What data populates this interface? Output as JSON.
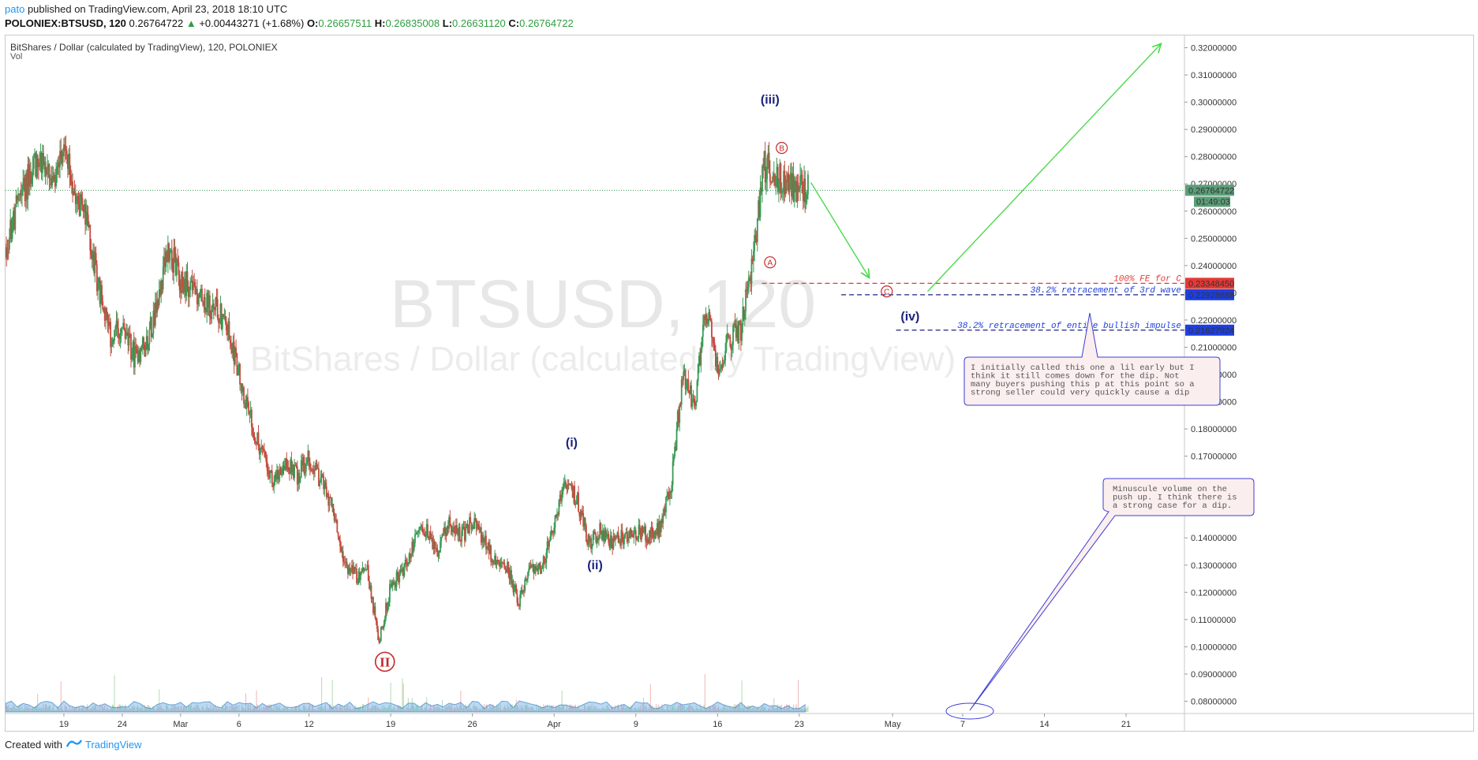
{
  "header": {
    "author": "pato",
    "published_text": "published on TradingView.com, April 23, 2018 18:10 UTC",
    "symbol": "POLONIEX:BTSUSD, 120",
    "last": "0.26764722",
    "change": "+0.00443271 (+1.68%)",
    "o_label": "O:",
    "o": "0.26657511",
    "h_label": "H:",
    "h": "0.26835008",
    "l_label": "L:",
    "l": "0.26631120",
    "c_label": "C:",
    "c": "0.26764722"
  },
  "footer": {
    "created_with": "Created with",
    "brand": "TradingView"
  },
  "chart_data": {
    "type": "candlestick",
    "title": "BitShares / Dollar (calculated by TradingView), 120, POLONIEX",
    "subtitle": "Vol",
    "watermark_symbol": "BTSUSD, 120",
    "watermark_name": "BitShares / Dollar (calculated by TradingView)",
    "x_tick_labels": [
      "19",
      "24",
      "Mar",
      "6",
      "12",
      "19",
      "26",
      "Apr",
      "9",
      "16",
      "23",
      "May",
      "7",
      "14",
      "21"
    ],
    "y_tick_labels": [
      "0.32000000",
      "0.31000000",
      "0.30000000",
      "0.29000000",
      "0.28000000",
      "0.27000000",
      "0.26000000",
      "0.25000000",
      "0.24000000",
      "0.23000000",
      "0.22000000",
      "0.21000000",
      "0.20000000",
      "0.19000000",
      "0.18000000",
      "0.17000000",
      "0.16000000",
      "0.15000000",
      "0.14000000",
      "0.13000000",
      "0.12000000",
      "0.11000000",
      "0.10000000",
      "0.09000000",
      "0.08000000"
    ],
    "ylim": [
      0.0755,
      0.3245
    ],
    "x_range_days": [
      "2018-02-14",
      "2018-05-26"
    ],
    "price_path": [
      [
        "2018-02-14",
        0.245
      ],
      [
        "2018-02-15",
        0.262
      ],
      [
        "2018-02-16",
        0.272
      ],
      [
        "2018-02-17",
        0.281
      ],
      [
        "2018-02-18",
        0.268
      ],
      [
        "2018-02-19",
        0.28
      ],
      [
        "2018-02-20",
        0.268
      ],
      [
        "2018-02-21",
        0.255
      ],
      [
        "2018-02-22",
        0.232
      ],
      [
        "2018-02-23",
        0.213
      ],
      [
        "2018-02-24",
        0.217
      ],
      [
        "2018-02-25",
        0.207
      ],
      [
        "2018-02-26",
        0.211
      ],
      [
        "2018-02-27",
        0.226
      ],
      [
        "2018-02-28",
        0.247
      ],
      [
        "2018-03-01",
        0.233
      ],
      [
        "2018-03-02",
        0.234
      ],
      [
        "2018-03-03",
        0.226
      ],
      [
        "2018-03-04",
        0.224
      ],
      [
        "2018-03-05",
        0.218
      ],
      [
        "2018-03-06",
        0.201
      ],
      [
        "2018-03-07",
        0.183
      ],
      [
        "2018-03-08",
        0.171
      ],
      [
        "2018-03-09",
        0.159
      ],
      [
        "2018-03-10",
        0.168
      ],
      [
        "2018-03-11",
        0.163
      ],
      [
        "2018-03-12",
        0.169
      ],
      [
        "2018-03-13",
        0.161
      ],
      [
        "2018-03-14",
        0.152
      ],
      [
        "2018-03-15",
        0.131
      ],
      [
        "2018-03-16",
        0.126
      ],
      [
        "2018-03-17",
        0.128
      ],
      [
        "2018-03-18",
        0.102
      ],
      [
        "2018-03-19",
        0.122
      ],
      [
        "2018-03-20",
        0.128
      ],
      [
        "2018-03-21",
        0.138
      ],
      [
        "2018-03-22",
        0.144
      ],
      [
        "2018-03-23",
        0.134
      ],
      [
        "2018-03-24",
        0.146
      ],
      [
        "2018-03-25",
        0.14
      ],
      [
        "2018-03-26",
        0.146
      ],
      [
        "2018-03-27",
        0.139
      ],
      [
        "2018-03-28",
        0.13
      ],
      [
        "2018-03-29",
        0.129
      ],
      [
        "2018-03-30",
        0.116
      ],
      [
        "2018-03-31",
        0.13
      ],
      [
        "2018-04-01",
        0.129
      ],
      [
        "2018-04-02",
        0.146
      ],
      [
        "2018-04-03",
        0.16
      ],
      [
        "2018-04-04",
        0.154
      ],
      [
        "2018-04-05",
        0.137
      ],
      [
        "2018-04-06",
        0.143
      ],
      [
        "2018-04-07",
        0.138
      ],
      [
        "2018-04-08",
        0.141
      ],
      [
        "2018-04-09",
        0.142
      ],
      [
        "2018-04-10",
        0.141
      ],
      [
        "2018-04-11",
        0.143
      ],
      [
        "2018-04-12",
        0.158
      ],
      [
        "2018-04-13",
        0.2
      ],
      [
        "2018-04-14",
        0.188
      ],
      [
        "2018-04-15",
        0.224
      ],
      [
        "2018-04-16",
        0.203
      ],
      [
        "2018-04-17",
        0.213
      ],
      [
        "2018-04-18",
        0.217
      ],
      [
        "2018-04-19",
        0.24
      ],
      [
        "2018-04-20",
        0.277
      ],
      [
        "2018-04-21",
        0.272
      ],
      [
        "2018-04-22",
        0.27
      ],
      [
        "2018-04-23",
        0.268
      ]
    ],
    "last_price": 0.26764722,
    "last_price_label": "0.26764722",
    "countdown_label": "01:49:03",
    "levels": [
      {
        "name": "100% FE for C",
        "value": 0.2334845,
        "label": "0.23348450",
        "color": "#e53935",
        "line_color": "#e53935"
      },
      {
        "name": "38.2% retracement of 3rd wave",
        "value": 0.22928688,
        "label": "0.22928688",
        "color": "#1e3fe0",
        "line_color": "#1a237e"
      },
      {
        "name": "38.2% retracement of entire bullish impulse",
        "value": 0.21627924,
        "label": "0.21627924",
        "color": "#1e3fe0",
        "line_color": "#1a237e"
      }
    ],
    "wave_labels": [
      {
        "text": "II",
        "date": "2018-03-18",
        "value": 0.0945,
        "style": "circle-red"
      },
      {
        "text": "(i)",
        "date": "2018-04-03",
        "value": 0.1735,
        "style": "blue"
      },
      {
        "text": "(ii)",
        "date": "2018-04-05",
        "value": 0.1285,
        "style": "blue"
      },
      {
        "text": "(iii)",
        "date": "2018-04-20",
        "value": 0.2995,
        "style": "blue"
      },
      {
        "text": "(iv)",
        "date": "2018-05-02",
        "value": 0.2198,
        "style": "blue"
      },
      {
        "text": "A",
        "date": "2018-04-20",
        "value": 0.2412,
        "style": "circle-small"
      },
      {
        "text": "B",
        "date": "2018-04-21",
        "value": 0.2832,
        "style": "circle-small"
      },
      {
        "text": "C",
        "date": "2018-04-30",
        "value": 0.2305,
        "style": "circle-small"
      }
    ],
    "projections": [
      {
        "from": [
          "2018-04-24",
          0.2705
        ],
        "to": [
          "2018-04-29",
          0.2355
        ],
        "color": "#4cd94c"
      },
      {
        "from": [
          "2018-05-04",
          0.2305
        ],
        "to": [
          "2018-05-24",
          0.3215
        ],
        "color": "#4cd94c"
      }
    ],
    "annotations": [
      {
        "text_lines": [
          "I initially called this one a lil early but I",
          "think it still comes down for the dip. Not",
          "many buyers pushing this p at this  point so a",
          "strong seller could very quickly cause a dip"
        ]
      },
      {
        "text_lines": [
          "Minuscule volume on the",
          "push up. I think there is",
          "a strong case for a dip."
        ]
      }
    ]
  }
}
